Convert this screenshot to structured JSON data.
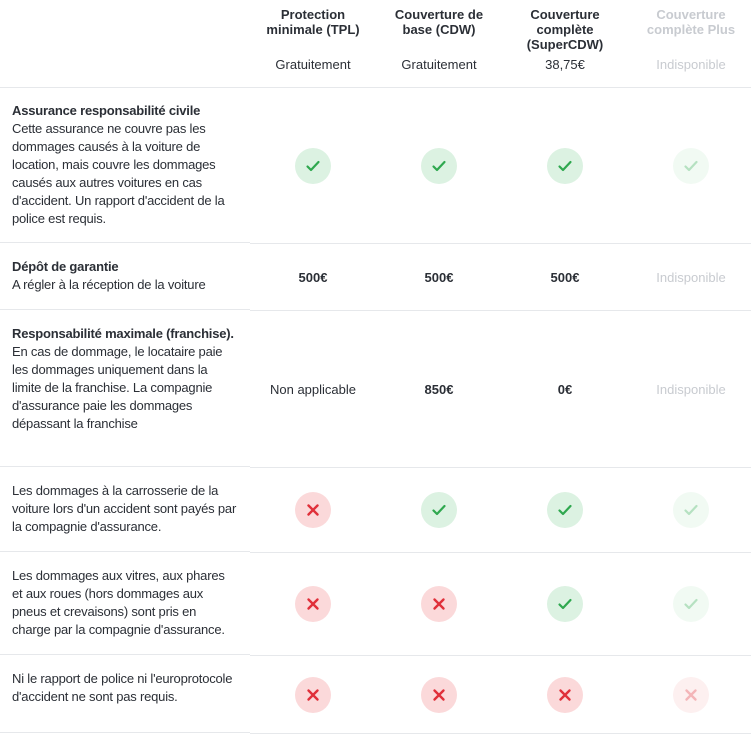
{
  "colors": {
    "check": "#2fa84f",
    "check_bg": "#dcf2e2",
    "cross": "#e0303a",
    "cross_bg": "#fbd9da",
    "unavailable": "#c8cbd0"
  },
  "columns": [
    {
      "title": "Protection minimale (TPL)",
      "price": "Gratuitement",
      "available": true
    },
    {
      "title": "Couverture de base (CDW)",
      "price": "Gratuitement",
      "available": true
    },
    {
      "title": "Couverture complète (SuperCDW)",
      "price": "38,75€",
      "available": true
    },
    {
      "title": "Couverture complète Plus",
      "price": "Indisponible",
      "available": false
    }
  ],
  "rows": [
    {
      "title": "Assurance responsabilité civile",
      "text": "Cette assurance ne couvre pas les dommages causés à la voiture de location, mais couvre les dommages causés aux autres voitures en cas d'accident. Un rapport d'accident de la police est requis.",
      "values": [
        "check",
        "check",
        "check",
        "check"
      ]
    },
    {
      "title": "Dépôt de garantie",
      "text": "A régler à la réception de la voiture",
      "values": [
        "500€",
        "500€",
        "500€",
        "Indisponible"
      ]
    },
    {
      "title": "Responsabilité maximale (franchise).",
      "text": " En cas de dommage, le locataire paie les dommages uniquement dans la limite de la franchise. La compagnie d'assurance paie les dommages dépassant la franchise",
      "values": [
        "Non applicable",
        "850€",
        "0€",
        "Indisponible"
      ]
    },
    {
      "title": "",
      "text": "Les dommages à la carrosserie de la voiture lors d'un accident sont payés par la compagnie d'assurance.",
      "values": [
        "cross",
        "check",
        "check",
        "check"
      ]
    },
    {
      "title": "",
      "text": "Les dommages aux vitres, aux phares et aux roues (hors dommages aux pneus et crevaisons) sont pris en charge par la compagnie d'assurance.",
      "values": [
        "cross",
        "cross",
        "check",
        "check"
      ]
    },
    {
      "title": "",
      "text": "Ni le rapport de police ni l'europrotocole d'accident ne sont pas requis.",
      "values": [
        "cross",
        "cross",
        "cross",
        "cross"
      ]
    }
  ]
}
